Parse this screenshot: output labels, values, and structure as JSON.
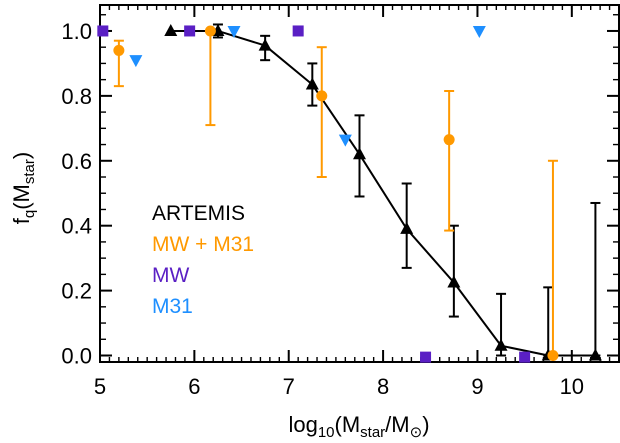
{
  "chart_data": {
    "type": "scatter",
    "xlabel": {
      "base": "log",
      "base_sub": "10",
      "open": "(M",
      "num_sub": "star",
      "slash": "/M",
      "sun": "⊙",
      "close": ")"
    },
    "ylabel": {
      "base": "f",
      "base_sub": "q",
      "open": "(M",
      "arg_sub": "star",
      "close": ")"
    },
    "xlim": [
      5,
      10.5
    ],
    "ylim": [
      -0.02,
      1.08
    ],
    "xticks": [
      {
        "v": 5,
        "label": "5"
      },
      {
        "v": 6,
        "label": "6"
      },
      {
        "v": 7,
        "label": "7"
      },
      {
        "v": 8,
        "label": "8"
      },
      {
        "v": 9,
        "label": "9"
      },
      {
        "v": 10,
        "label": "10"
      }
    ],
    "yticks": [
      {
        "v": 0.0,
        "label": "0.0"
      },
      {
        "v": 0.2,
        "label": "0.2"
      },
      {
        "v": 0.4,
        "label": "0.4"
      },
      {
        "v": 0.6,
        "label": "0.6"
      },
      {
        "v": 0.8,
        "label": "0.8"
      },
      {
        "v": 1.0,
        "label": "1.0"
      }
    ],
    "series": [
      {
        "name": "ARTEMIS",
        "color": "#000000",
        "marker": "triangle-up",
        "connected": true,
        "points": [
          {
            "x": 5.75,
            "y": 1.0
          },
          {
            "x": 6.25,
            "y": 1.0,
            "lo": 0.98,
            "hi": 1.02
          },
          {
            "x": 6.75,
            "y": 0.955,
            "lo": 0.91,
            "hi": 0.985
          },
          {
            "x": 7.25,
            "y": 0.835,
            "lo": 0.77,
            "hi": 0.9
          },
          {
            "x": 7.75,
            "y": 0.62,
            "lo": 0.49,
            "hi": 0.74
          },
          {
            "x": 8.25,
            "y": 0.39,
            "lo": 0.27,
            "hi": 0.53
          },
          {
            "x": 8.75,
            "y": 0.225,
            "lo": 0.12,
            "hi": 0.4
          },
          {
            "x": 9.25,
            "y": 0.03,
            "lo": 0.0,
            "hi": 0.19
          },
          {
            "x": 9.75,
            "y": 0.0,
            "lo": 0.0,
            "hi": 0.21
          },
          {
            "x": 10.25,
            "y": 0.0,
            "lo": 0.0,
            "hi": 0.47
          }
        ]
      },
      {
        "name": "MW + M31",
        "color": "#FF9900",
        "marker": "circle",
        "connected": false,
        "points": [
          {
            "x": 5.2,
            "y": 0.94,
            "lo": 0.83,
            "hi": 0.97
          },
          {
            "x": 6.17,
            "y": 1.0,
            "lo": 0.71,
            "hi": 1.0
          },
          {
            "x": 7.35,
            "y": 0.8,
            "lo": 0.55,
            "hi": 0.95
          },
          {
            "x": 8.7,
            "y": 0.665,
            "lo": 0.385,
            "hi": 0.815
          },
          {
            "x": 9.8,
            "y": 0.0,
            "lo": 0.0,
            "hi": 0.6
          }
        ]
      },
      {
        "name": "MW",
        "color": "#5A1FC4",
        "marker": "square",
        "connected": false,
        "points": [
          {
            "x": 5.03,
            "y": 1.0
          },
          {
            "x": 5.95,
            "y": 1.0
          },
          {
            "x": 7.1,
            "y": 1.0
          },
          {
            "x": 8.45,
            "y": -0.005
          },
          {
            "x": 9.5,
            "y": -0.005
          }
        ]
      },
      {
        "name": "M31",
        "color": "#1E8FFF",
        "marker": "triangle-down",
        "connected": false,
        "points": [
          {
            "x": 5.38,
            "y": 0.91
          },
          {
            "x": 6.42,
            "y": 1.0
          },
          {
            "x": 7.6,
            "y": 0.665
          },
          {
            "x": 9.02,
            "y": 1.0
          }
        ]
      }
    ],
    "legend": {
      "position": "lower-left"
    }
  }
}
